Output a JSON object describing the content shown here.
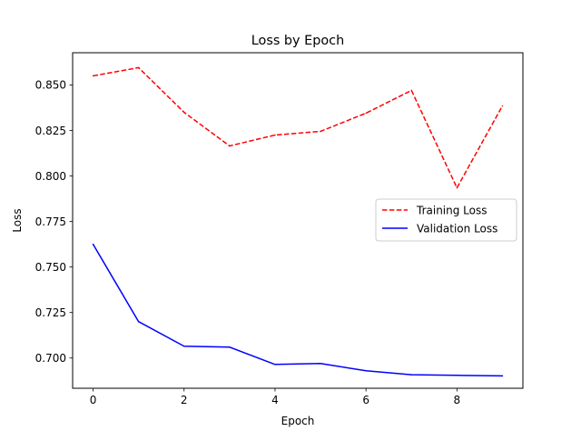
{
  "chart_data": {
    "type": "line",
    "title": "Loss by Epoch",
    "xlabel": "Epoch",
    "ylabel": "Loss",
    "xlim": [
      -0.45,
      9.45
    ],
    "ylim": [
      0.6834,
      0.8677
    ],
    "x_ticks": [
      0,
      2,
      4,
      6,
      8
    ],
    "y_ticks": [
      0.7,
      0.725,
      0.75,
      0.775,
      0.8,
      0.825,
      0.85
    ],
    "x_tick_labels": [
      "0",
      "2",
      "4",
      "6",
      "8"
    ],
    "y_tick_labels": [
      "0.700",
      "0.725",
      "0.750",
      "0.775",
      "0.800",
      "0.825",
      "0.850"
    ],
    "grid": false,
    "legend_position": "center-right",
    "x": [
      0,
      1,
      2,
      3,
      4,
      5,
      6,
      7,
      8,
      9
    ],
    "series": [
      {
        "name": "Training Loss",
        "color": "#ff0000",
        "style": "dashed",
        "values": [
          0.855,
          0.8595,
          0.835,
          0.8165,
          0.8225,
          0.8245,
          0.8345,
          0.847,
          0.7935,
          0.8385
        ]
      },
      {
        "name": "Validation Loss",
        "color": "#0000ff",
        "style": "solid",
        "values": [
          0.7625,
          0.72,
          0.7065,
          0.706,
          0.6965,
          0.697,
          0.693,
          0.6908,
          0.6905,
          0.6902
        ]
      }
    ]
  }
}
